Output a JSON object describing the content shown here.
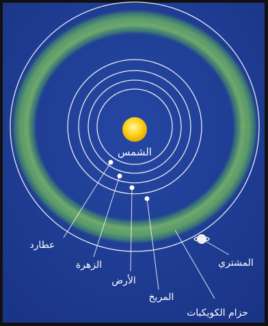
{
  "colors": {
    "background": "#1f3c93",
    "frame": "#111111",
    "orbit": "#ffffff",
    "belt": "#7bc85e",
    "sun": "#ffd21c",
    "label": "#ffffff"
  },
  "labels": {
    "sun": "الشمس",
    "mercury": "عطارد",
    "venus": "الزهرة",
    "earth": "الأرض",
    "mars": "المريخ",
    "asteroid_belt": "حزام الكويكبات",
    "jupiter": "المشتري"
  }
}
